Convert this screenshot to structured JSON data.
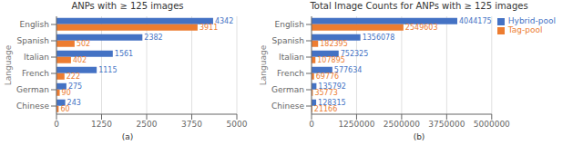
{
  "chart_data": [
    {
      "type": "bar",
      "orientation": "horizontal",
      "title": "ANPs with ≥ 125 images",
      "xlabel": "(a)",
      "ylabel": "Language",
      "categories": [
        "Chinese",
        "German",
        "French",
        "Italian",
        "Spanish",
        "English"
      ],
      "series": [
        {
          "name": "Hybrid-pool",
          "color": "#4472c4",
          "values": [
            243,
            275,
            1115,
            1561,
            2382,
            4342
          ]
        },
        {
          "name": "Tag-pool",
          "color": "#ed7d31",
          "values": [
            60,
            90,
            222,
            402,
            502,
            3911
          ]
        }
      ],
      "xlim": [
        0,
        5000
      ],
      "xticks": [
        0,
        1250,
        2500,
        3750,
        5000
      ],
      "grid": true,
      "data_labels": true
    },
    {
      "type": "bar",
      "orientation": "horizontal",
      "title": "Total Image Counts for ANPs with ≥ 125 images",
      "xlabel": "(b)",
      "ylabel": "Language",
      "categories": [
        "Chinese",
        "German",
        "French",
        "Italian",
        "Spanish",
        "English"
      ],
      "series": [
        {
          "name": "Hybrid-pool",
          "color": "#4472c4",
          "values": [
            128315,
            135792,
            577634,
            752325,
            1356078,
            4044175
          ]
        },
        {
          "name": "Tag-pool",
          "color": "#ed7d31",
          "values": [
            21166,
            35773,
            69776,
            107895,
            182395,
            2549603
          ]
        }
      ],
      "xlim": [
        0,
        5000000
      ],
      "xticks": [
        0,
        1250000,
        2500000,
        3750000,
        5000000
      ],
      "grid": true,
      "data_labels": true,
      "legend": "upper right"
    }
  ]
}
